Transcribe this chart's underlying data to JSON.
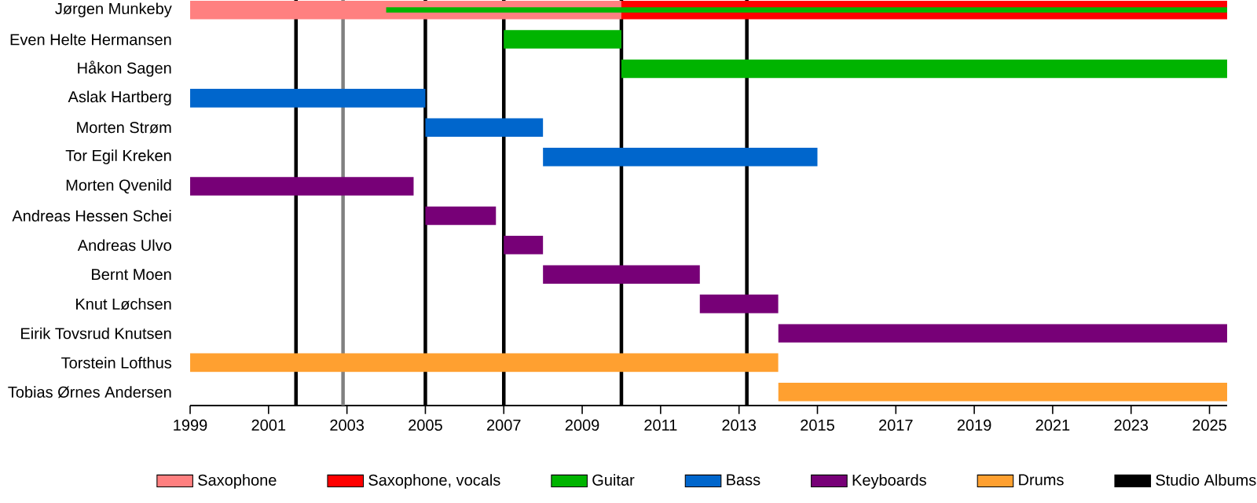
{
  "chart_data": {
    "type": "bar",
    "orientation": "horizontal",
    "categories": [
      "Jørgen Munkeby",
      "Even Helte Hermansen",
      "Håkon Sagen",
      "Aslak Hartberg",
      "Morten Strøm",
      "Tor Egil Kreken",
      "Morten Qvenild",
      "Andreas Hessen Schei",
      "Andreas Ulvo",
      "Bernt Moen",
      "Knut Løchsen",
      "Eirik Tovsrud Knutsen",
      "Torstein Lofthus",
      "Tobias Ørnes Andersen"
    ],
    "series": [
      {
        "name": "Saxophone",
        "color": "#ff8080",
        "values": [
          11,
          null,
          null,
          null,
          null,
          null,
          null,
          null,
          null,
          null,
          null,
          null,
          null,
          null
        ],
        "base": [
          1999,
          null,
          null,
          null,
          null,
          null,
          null,
          null,
          null,
          null,
          null,
          null,
          null,
          null
        ]
      },
      {
        "name": "Saxophone, vocals",
        "color": "#ff0000",
        "values": [
          15.45,
          null,
          null,
          null,
          null,
          null,
          null,
          null,
          null,
          null,
          null,
          null,
          null,
          null
        ],
        "base": [
          2010,
          null,
          null,
          null,
          null,
          null,
          null,
          null,
          null,
          null,
          null,
          null,
          null,
          null
        ]
      },
      {
        "name": "Guitar",
        "color": "#00b400",
        "values": [
          21.45,
          3,
          15.45,
          null,
          null,
          null,
          null,
          null,
          null,
          null,
          null,
          null,
          null,
          null
        ],
        "base": [
          2004,
          2007,
          2010,
          null,
          null,
          null,
          null,
          null,
          null,
          null,
          null,
          null,
          null,
          null
        ]
      },
      {
        "name": "Bass",
        "color": "#0066cc",
        "values": [
          null,
          null,
          null,
          6,
          3,
          7,
          null,
          null,
          null,
          null,
          null,
          null,
          null,
          null
        ],
        "base": [
          null,
          null,
          null,
          1999,
          2005,
          2008,
          null,
          null,
          null,
          null,
          null,
          null,
          null,
          null
        ]
      },
      {
        "name": "Keyboards",
        "color": "#770077",
        "values": [
          null,
          null,
          null,
          null,
          null,
          null,
          5.7,
          1.8,
          1,
          4,
          2,
          11.45,
          null,
          null
        ],
        "base": [
          null,
          null,
          null,
          null,
          null,
          null,
          1999,
          2005,
          2007,
          2008,
          2012,
          2014,
          null,
          null
        ]
      },
      {
        "name": "Drums",
        "color": "#ffa030",
        "values": [
          null,
          null,
          null,
          null,
          null,
          null,
          null,
          null,
          null,
          null,
          null,
          null,
          15,
          11.45
        ],
        "base": [
          null,
          null,
          null,
          null,
          null,
          null,
          null,
          null,
          null,
          null,
          null,
          null,
          1999,
          2014
        ]
      }
    ],
    "xlim": [
      1999,
      2025.45
    ],
    "xticks": [
      1999,
      2001,
      2003,
      2005,
      2007,
      2009,
      2011,
      2013,
      2015,
      2017,
      2019,
      2021,
      2023,
      2025
    ],
    "ref_lines": [
      {
        "axis": "x",
        "value": 2001.7,
        "color": "#000000",
        "label": "Studio Albums"
      },
      {
        "axis": "x",
        "value": 2002.9,
        "color": "#808080"
      },
      {
        "axis": "x",
        "value": 2005,
        "color": "#000000"
      },
      {
        "axis": "x",
        "value": 2007,
        "color": "#000000"
      },
      {
        "axis": "x",
        "value": 2010,
        "color": "#000000"
      },
      {
        "axis": "x",
        "value": 2013.2,
        "color": "#000000"
      }
    ],
    "legend": "bottom",
    "grid": false
  }
}
